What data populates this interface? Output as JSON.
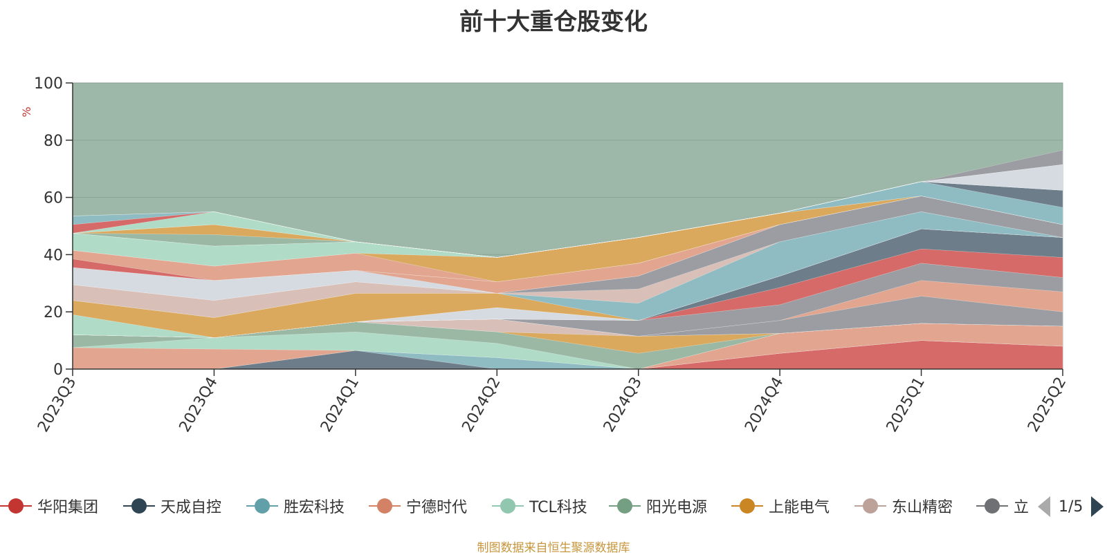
{
  "chart_data": {
    "type": "area",
    "title": "前十大重仓股变化",
    "ylabel": "%",
    "ylim": [
      0,
      100
    ],
    "yticks": [
      0,
      20,
      40,
      60,
      80,
      100
    ],
    "grid": true,
    "categories": [
      "2023Q3",
      "2023Q4",
      "2024Q1",
      "2024Q2",
      "2024Q3",
      "2024Q4",
      "2025Q1",
      "2025Q2"
    ],
    "series": [
      {
        "name": "华阳集团",
        "color": "#d56a68",
        "values": [
          0,
          0,
          0,
          0,
          0,
          5.5,
          10,
          8
        ]
      },
      {
        "name": "天成自控",
        "color": "#6e7d8a",
        "values": [
          0,
          0,
          6.5,
          0,
          0,
          0,
          0,
          0
        ]
      },
      {
        "name": "胜宏科技",
        "color": "#8fbcc3",
        "values": [
          0,
          0,
          0,
          4,
          0,
          0,
          0,
          0
        ]
      },
      {
        "name": "宁德时代",
        "color": "#e2a690",
        "values": [
          7.5,
          7,
          0,
          0,
          0,
          7,
          6,
          7
        ]
      },
      {
        "name": "TCL科技",
        "color": "#b0dcc7",
        "values": [
          0,
          4,
          6.5,
          5,
          0,
          0,
          0,
          0
        ]
      },
      {
        "name": "阳光电源",
        "color": "#9ab8a4",
        "values": [
          4.5,
          0,
          3.5,
          4,
          5.5,
          0,
          0,
          0
        ]
      },
      {
        "name": "上能电气",
        "color": "#daa95e",
        "values": [
          0,
          0,
          0,
          0,
          6,
          0,
          0,
          0
        ]
      },
      {
        "name": "东山精密",
        "color": "#d8bfb8",
        "values": [
          0,
          0,
          0,
          4.5,
          0,
          0,
          0,
          0
        ]
      },
      {
        "name": "立讯精密",
        "color": "#9b9da3",
        "values": [
          0,
          0,
          0,
          0,
          0,
          4.5,
          9.5,
          5
        ]
      }
    ]
  },
  "legend": {
    "items": [
      {
        "name": "华阳集团",
        "color": "#c23531"
      },
      {
        "name": "天成自控",
        "color": "#2f4554"
      },
      {
        "name": "胜宏科技",
        "color": "#61a0a8"
      },
      {
        "name": "宁德时代",
        "color": "#d48265"
      },
      {
        "name": "TCL科技",
        "color": "#91c7ae"
      },
      {
        "name": "阳光电源",
        "color": "#749f83"
      },
      {
        "name": "上能电气",
        "color": "#ca8622"
      },
      {
        "name": "东山精密",
        "color": "#bda29a"
      },
      {
        "name": "立",
        "color": "#6e7074"
      }
    ],
    "pager": "1/5"
  },
  "decor_layers": [
    {
      "color": "#e2a690",
      "values": [
        0,
        0,
        0,
        0,
        0,
        0,
        5.5,
        7
      ]
    },
    {
      "color": "#9b9da3",
      "values": [
        0,
        0,
        0,
        0,
        5.5,
        5.5,
        6,
        5
      ]
    },
    {
      "color": "#d56a68",
      "values": [
        0,
        0,
        0,
        0,
        0,
        6,
        5,
        7
      ]
    },
    {
      "color": "#6e7d8a",
      "values": [
        0,
        0,
        0,
        0,
        0,
        4,
        7,
        7
      ]
    },
    {
      "color": "#d6dbe2",
      "values": [
        0,
        0,
        0,
        4,
        0,
        0,
        0,
        0
      ]
    },
    {
      "color": "#b0dcc7",
      "values": [
        7,
        0,
        0,
        0,
        0,
        0,
        0,
        0
      ]
    },
    {
      "color": "#daa95e",
      "values": [
        5,
        7,
        10,
        5,
        0,
        0,
        0,
        0
      ]
    },
    {
      "color": "#8fbcc3",
      "values": [
        0,
        0,
        0,
        0,
        6,
        12,
        6,
        0
      ]
    },
    {
      "color": "#d8bfb8",
      "values": [
        5.5,
        6,
        4,
        0,
        5,
        0,
        0,
        0
      ]
    },
    {
      "color": "#9b9da3",
      "values": [
        0,
        0,
        0,
        0,
        4.5,
        6,
        5.5,
        4.5
      ]
    },
    {
      "color": "#d6dbe2",
      "values": [
        6,
        7,
        4,
        0,
        0,
        0,
        0,
        0
      ]
    },
    {
      "color": "#e2a690",
      "values": [
        0,
        0,
        0,
        4,
        4.5,
        0,
        0,
        0
      ]
    },
    {
      "color": "#d56a68",
      "values": [
        3,
        0,
        0,
        0,
        0,
        0,
        0,
        0
      ]
    },
    {
      "color": "#e2a690",
      "values": [
        3,
        5,
        6,
        0,
        0,
        0,
        0,
        0
      ]
    },
    {
      "color": "#daa95e",
      "values": [
        0,
        0,
        0,
        8.5,
        9,
        4,
        0,
        0
      ]
    },
    {
      "color": "#b0dcc7",
      "values": [
        6,
        7,
        4,
        0,
        0,
        0,
        0,
        0
      ]
    },
    {
      "color": "#8fbcc3",
      "values": [
        0,
        0,
        0,
        0,
        0,
        0,
        5,
        6
      ]
    },
    {
      "color": "#6e7d8a",
      "values": [
        0,
        0,
        0,
        0,
        0,
        0,
        0,
        6
      ]
    },
    {
      "color": "#9ab8a4",
      "values": [
        0,
        4,
        0,
        0,
        0,
        0,
        0,
        0
      ]
    },
    {
      "color": "#daa95e",
      "values": [
        0,
        3.5,
        0,
        0,
        0,
        0,
        0,
        0
      ]
    },
    {
      "color": "#d6dbe2",
      "values": [
        0,
        0,
        0,
        0,
        0,
        0,
        0,
        9
      ]
    },
    {
      "color": "#b0dcc7",
      "values": [
        0,
        4.5,
        0,
        0,
        0,
        0,
        0,
        0
      ]
    },
    {
      "color": "#d56a68",
      "values": [
        3,
        0,
        0,
        0,
        0,
        0,
        0,
        0
      ]
    },
    {
      "color": "#8fbcc3",
      "values": [
        3,
        0,
        0,
        0,
        0,
        0,
        0,
        0
      ]
    },
    {
      "color": "#9b9da3",
      "values": [
        0,
        0,
        0,
        0,
        0,
        0,
        0,
        5
      ]
    }
  ],
  "background_area_color": "#9db8a8",
  "source_note": "制图数据来自恒生聚源数据库"
}
